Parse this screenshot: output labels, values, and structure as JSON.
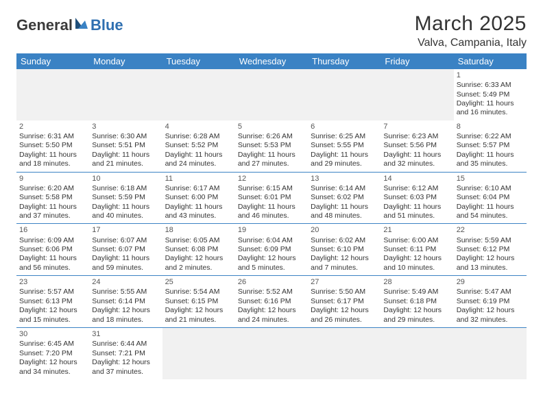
{
  "logo": {
    "text1": "General",
    "text2": "Blue"
  },
  "title": "March 2025",
  "location": "Valva, Campania, Italy",
  "header_bg": "#3a82c4",
  "header_fg": "#ffffff",
  "border_color": "#3a82c4",
  "empty_bg": "#f1f1f1",
  "weekdays": [
    "Sunday",
    "Monday",
    "Tuesday",
    "Wednesday",
    "Thursday",
    "Friday",
    "Saturday"
  ],
  "weeks": [
    [
      null,
      null,
      null,
      null,
      null,
      null,
      {
        "n": "1",
        "sr": "Sunrise: 6:33 AM",
        "ss": "Sunset: 5:49 PM",
        "dl": "Daylight: 11 hours and 16 minutes."
      }
    ],
    [
      {
        "n": "2",
        "sr": "Sunrise: 6:31 AM",
        "ss": "Sunset: 5:50 PM",
        "dl": "Daylight: 11 hours and 18 minutes."
      },
      {
        "n": "3",
        "sr": "Sunrise: 6:30 AM",
        "ss": "Sunset: 5:51 PM",
        "dl": "Daylight: 11 hours and 21 minutes."
      },
      {
        "n": "4",
        "sr": "Sunrise: 6:28 AM",
        "ss": "Sunset: 5:52 PM",
        "dl": "Daylight: 11 hours and 24 minutes."
      },
      {
        "n": "5",
        "sr": "Sunrise: 6:26 AM",
        "ss": "Sunset: 5:53 PM",
        "dl": "Daylight: 11 hours and 27 minutes."
      },
      {
        "n": "6",
        "sr": "Sunrise: 6:25 AM",
        "ss": "Sunset: 5:55 PM",
        "dl": "Daylight: 11 hours and 29 minutes."
      },
      {
        "n": "7",
        "sr": "Sunrise: 6:23 AM",
        "ss": "Sunset: 5:56 PM",
        "dl": "Daylight: 11 hours and 32 minutes."
      },
      {
        "n": "8",
        "sr": "Sunrise: 6:22 AM",
        "ss": "Sunset: 5:57 PM",
        "dl": "Daylight: 11 hours and 35 minutes."
      }
    ],
    [
      {
        "n": "9",
        "sr": "Sunrise: 6:20 AM",
        "ss": "Sunset: 5:58 PM",
        "dl": "Daylight: 11 hours and 37 minutes."
      },
      {
        "n": "10",
        "sr": "Sunrise: 6:18 AM",
        "ss": "Sunset: 5:59 PM",
        "dl": "Daylight: 11 hours and 40 minutes."
      },
      {
        "n": "11",
        "sr": "Sunrise: 6:17 AM",
        "ss": "Sunset: 6:00 PM",
        "dl": "Daylight: 11 hours and 43 minutes."
      },
      {
        "n": "12",
        "sr": "Sunrise: 6:15 AM",
        "ss": "Sunset: 6:01 PM",
        "dl": "Daylight: 11 hours and 46 minutes."
      },
      {
        "n": "13",
        "sr": "Sunrise: 6:14 AM",
        "ss": "Sunset: 6:02 PM",
        "dl": "Daylight: 11 hours and 48 minutes."
      },
      {
        "n": "14",
        "sr": "Sunrise: 6:12 AM",
        "ss": "Sunset: 6:03 PM",
        "dl": "Daylight: 11 hours and 51 minutes."
      },
      {
        "n": "15",
        "sr": "Sunrise: 6:10 AM",
        "ss": "Sunset: 6:04 PM",
        "dl": "Daylight: 11 hours and 54 minutes."
      }
    ],
    [
      {
        "n": "16",
        "sr": "Sunrise: 6:09 AM",
        "ss": "Sunset: 6:06 PM",
        "dl": "Daylight: 11 hours and 56 minutes."
      },
      {
        "n": "17",
        "sr": "Sunrise: 6:07 AM",
        "ss": "Sunset: 6:07 PM",
        "dl": "Daylight: 11 hours and 59 minutes."
      },
      {
        "n": "18",
        "sr": "Sunrise: 6:05 AM",
        "ss": "Sunset: 6:08 PM",
        "dl": "Daylight: 12 hours and 2 minutes."
      },
      {
        "n": "19",
        "sr": "Sunrise: 6:04 AM",
        "ss": "Sunset: 6:09 PM",
        "dl": "Daylight: 12 hours and 5 minutes."
      },
      {
        "n": "20",
        "sr": "Sunrise: 6:02 AM",
        "ss": "Sunset: 6:10 PM",
        "dl": "Daylight: 12 hours and 7 minutes."
      },
      {
        "n": "21",
        "sr": "Sunrise: 6:00 AM",
        "ss": "Sunset: 6:11 PM",
        "dl": "Daylight: 12 hours and 10 minutes."
      },
      {
        "n": "22",
        "sr": "Sunrise: 5:59 AM",
        "ss": "Sunset: 6:12 PM",
        "dl": "Daylight: 12 hours and 13 minutes."
      }
    ],
    [
      {
        "n": "23",
        "sr": "Sunrise: 5:57 AM",
        "ss": "Sunset: 6:13 PM",
        "dl": "Daylight: 12 hours and 15 minutes."
      },
      {
        "n": "24",
        "sr": "Sunrise: 5:55 AM",
        "ss": "Sunset: 6:14 PM",
        "dl": "Daylight: 12 hours and 18 minutes."
      },
      {
        "n": "25",
        "sr": "Sunrise: 5:54 AM",
        "ss": "Sunset: 6:15 PM",
        "dl": "Daylight: 12 hours and 21 minutes."
      },
      {
        "n": "26",
        "sr": "Sunrise: 5:52 AM",
        "ss": "Sunset: 6:16 PM",
        "dl": "Daylight: 12 hours and 24 minutes."
      },
      {
        "n": "27",
        "sr": "Sunrise: 5:50 AM",
        "ss": "Sunset: 6:17 PM",
        "dl": "Daylight: 12 hours and 26 minutes."
      },
      {
        "n": "28",
        "sr": "Sunrise: 5:49 AM",
        "ss": "Sunset: 6:18 PM",
        "dl": "Daylight: 12 hours and 29 minutes."
      },
      {
        "n": "29",
        "sr": "Sunrise: 5:47 AM",
        "ss": "Sunset: 6:19 PM",
        "dl": "Daylight: 12 hours and 32 minutes."
      }
    ],
    [
      {
        "n": "30",
        "sr": "Sunrise: 6:45 AM",
        "ss": "Sunset: 7:20 PM",
        "dl": "Daylight: 12 hours and 34 minutes."
      },
      {
        "n": "31",
        "sr": "Sunrise: 6:44 AM",
        "ss": "Sunset: 7:21 PM",
        "dl": "Daylight: 12 hours and 37 minutes."
      },
      null,
      null,
      null,
      null,
      null
    ]
  ]
}
